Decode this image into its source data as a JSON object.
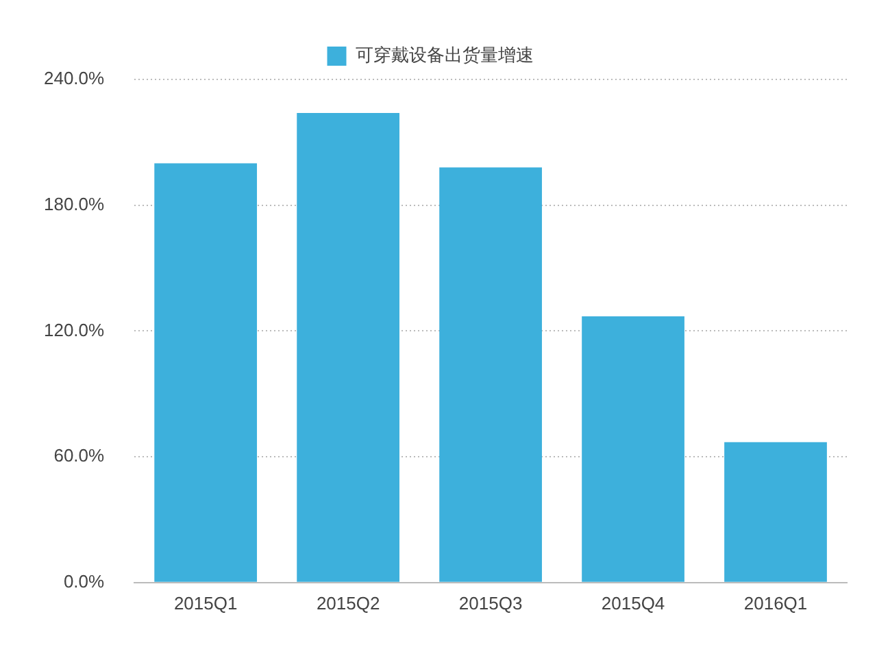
{
  "chart_data": {
    "type": "bar",
    "categories": [
      "2015Q1",
      "2015Q2",
      "2015Q3",
      "2015Q4",
      "2016Q1"
    ],
    "series": [
      {
        "name": "可穿戴设备出货量增速",
        "color": "#3db0dc",
        "values": [
          200,
          224,
          198,
          127,
          67
        ]
      }
    ],
    "ylim": [
      0,
      240
    ],
    "yticks": [
      {
        "value": 0,
        "label": "0.0%"
      },
      {
        "value": 60,
        "label": "60.0%"
      },
      {
        "value": 120,
        "label": "120.0%"
      },
      {
        "value": 180,
        "label": "180.0%"
      },
      {
        "value": 240,
        "label": "240.0%"
      }
    ],
    "grid": "y",
    "legend": "top"
  }
}
